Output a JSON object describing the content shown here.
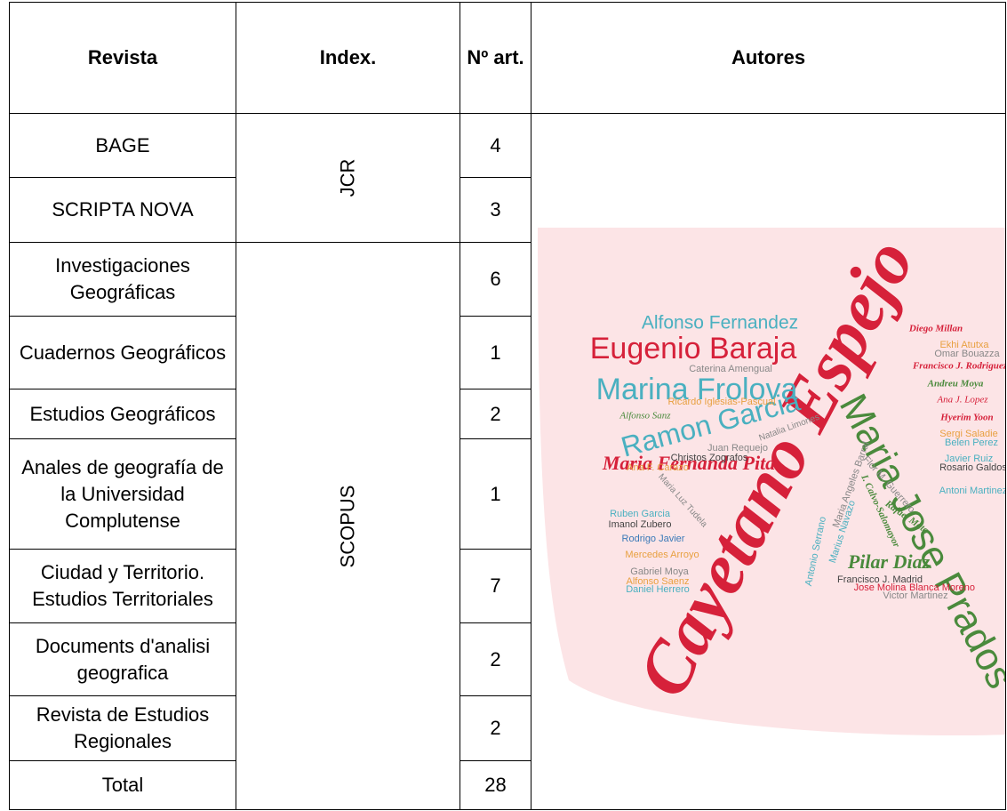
{
  "table": {
    "header": [
      "Revista",
      "Index.",
      "Nº art.",
      "Autores"
    ],
    "rows": [
      [
        "BAGE",
        4
      ],
      [
        "SCRIPTA NOVA",
        3
      ],
      [
        "Investigaciones Geográficas",
        6
      ],
      [
        "Cuadernos Geográficos",
        1
      ],
      [
        "Estudios Geográficos",
        2
      ],
      [
        "Anales de geografía de la Universidad Complutense",
        1
      ],
      [
        "Ciudad y Territorio. Estudios Territoriales",
        7
      ],
      [
        "Documents d'analisi geografica",
        2
      ],
      [
        "Revista de Estudios Regionales",
        2
      ]
    ],
    "index_groups": [
      "JCR",
      "SCOPUS"
    ],
    "total": [
      "Total",
      28
    ]
  },
  "word_cloud": {
    "words": [
      "Cayetano Espejo",
      "Maria Jose Prados",
      "Alfonso Fernandez",
      "Eugenio Baraja",
      "Marina Frolova",
      "Ramon Garcia",
      "Maria Fernanda Pita",
      "Caterina Amengual",
      "Ricardo Iglesias-Pascual",
      "Alfonso Sanz",
      "Natalia Limones",
      "Juan Requejo",
      "Christos Zografos",
      "Ana F. Carazo",
      "Maria Luz Tudela",
      "Ruben Garcia",
      "Imanol Zubero",
      "Rodrigo Javier",
      "Mercedes Arroyo",
      "Gabriel Moya",
      "Alfonso Saenz",
      "Daniel Herrero",
      "Diego Millan",
      "Ekhi Atutxa",
      "Omar Bouazza",
      "Francisco J. Rodriguez",
      "Andreu Moya",
      "Ana J. Lopez",
      "Hyerim Yoon",
      "Sergi Saladie",
      "Belen Perez",
      "Javier Ruiz",
      "Rosario Galdos",
      "Antoni Martinez",
      "Flor M. Guerrero",
      "Maria Angeles Barral",
      "I. Calvo-Salomayor",
      "Rafael Mata",
      "Marius Navazo",
      "Antonio Serrano",
      "Pilar Diaz",
      "Francisco J. Madrid",
      "Jose Molina",
      "Blanca Moreno",
      "Victor Martinez"
    ]
  }
}
